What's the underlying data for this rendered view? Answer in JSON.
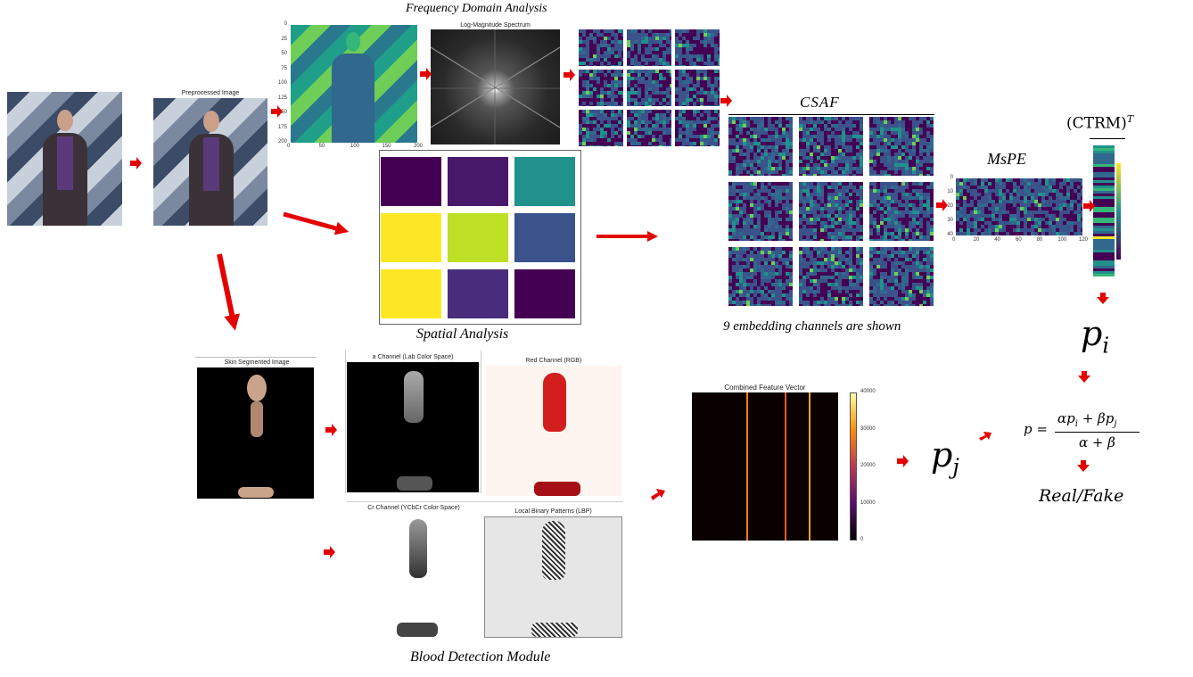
{
  "titles": {
    "frequency": "Frequency Domain Analysis",
    "spatial": "Spatial Analysis",
    "csaf": "CSAF",
    "mspe": "MsPE",
    "ctrm": "(CTRM)",
    "ctrm_sup": "T",
    "blood": "Blood Detection Module",
    "embedding_note": "9 embedding channels are shown"
  },
  "panels": {
    "preprocessed": "Preprocessed Image",
    "spectrum": "Log-Magnitude Spectrum",
    "skin": "Skin Segmented Image",
    "a_channel": "a Channel (Lab Color Space)",
    "red_channel": "Red Channel (RGB)",
    "cr_channel": "Cr Channel (YCbCr Color Space)",
    "lbp": "Local Binary Patterns (LBP)",
    "combined": "Combined Feature Vector"
  },
  "axes": {
    "freq_y": [
      "0",
      "25",
      "50",
      "75",
      "100",
      "125",
      "150",
      "175",
      "200"
    ],
    "freq_x": [
      "0",
      "50",
      "100",
      "150",
      "200"
    ],
    "mspe_x": [
      "0",
      "20",
      "40",
      "60",
      "80",
      "100",
      "120"
    ],
    "mspe_y": [
      "0",
      "10",
      "20",
      "30",
      "40"
    ],
    "combined_cb": [
      "40000",
      "30000",
      "20000",
      "10000",
      "0"
    ]
  },
  "formula": {
    "pi": "p",
    "pi_sub": "i",
    "pj": "p",
    "pj_sub": "j",
    "lhs": "p =",
    "numerator": "αp",
    "num_sub1": "i",
    "num_mid": " + βp",
    "num_sub2": "j",
    "denominator": "α + β",
    "result": "Real/Fake"
  },
  "colors": {
    "arrow": "#e50000",
    "viridis_dark": "#440154",
    "viridis_mid": "#21918c",
    "viridis_yellow": "#fde725",
    "inferno_dark": "#0a0000"
  }
}
